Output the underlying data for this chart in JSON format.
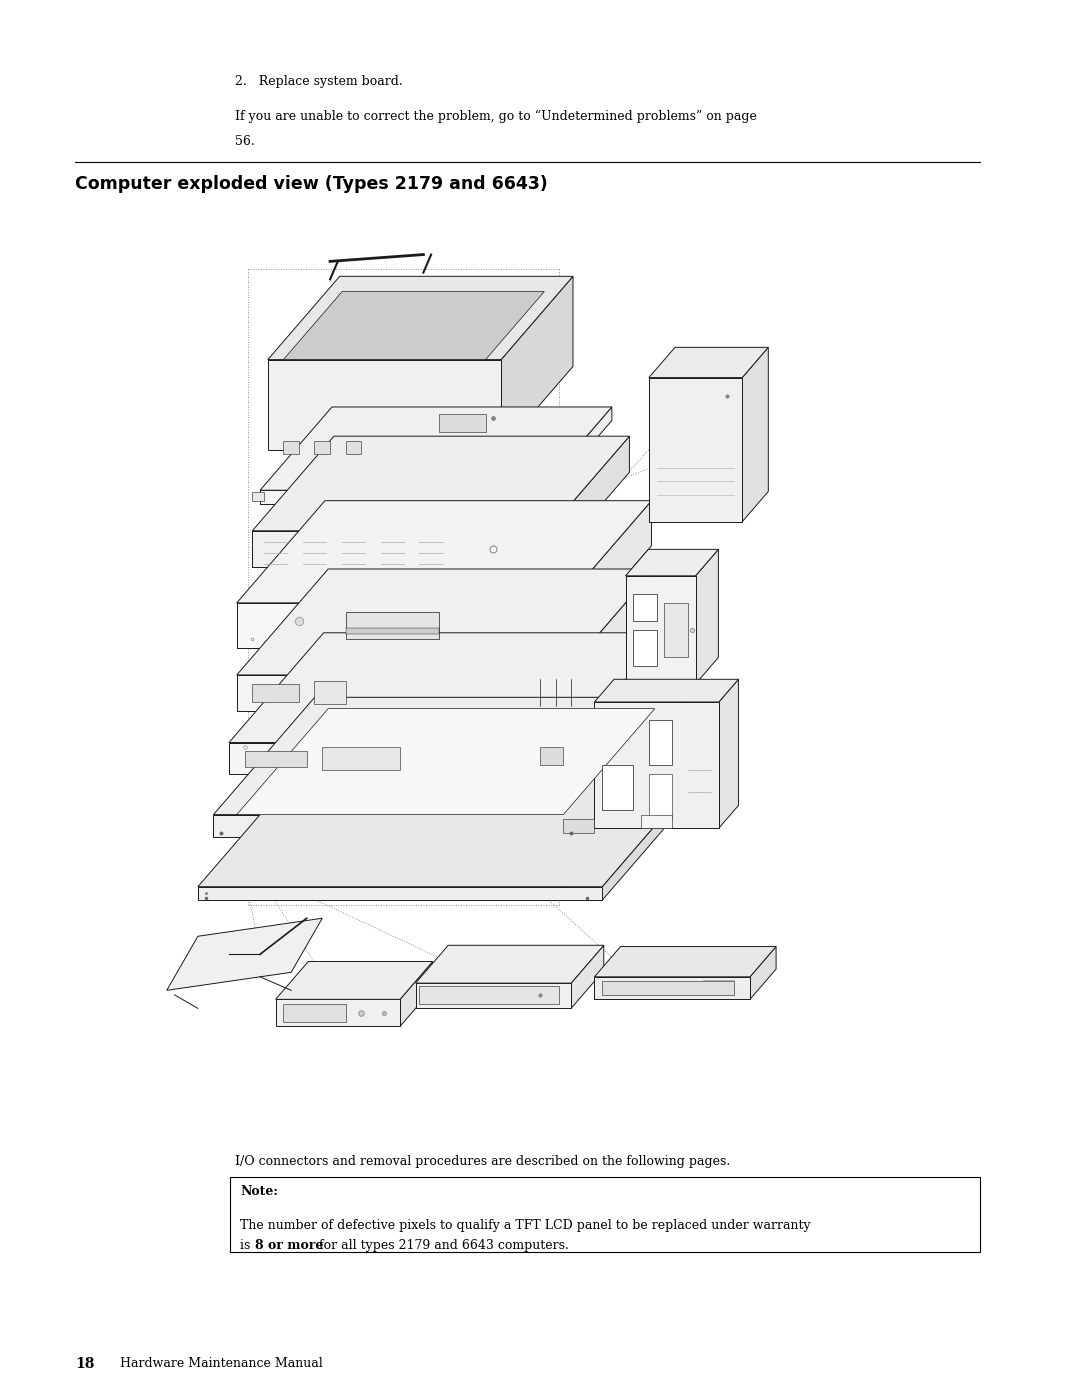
{
  "bg_color": "#ffffff",
  "page_width": 10.8,
  "page_height": 13.97,
  "text_color": "#000000",
  "line1": "2.   Replace system board.",
  "line2": "If you are unable to correct the problem, go to “Undetermined problems” on page",
  "line3": "56.",
  "section_title": "Computer exploded view (Types 2179 and 6643)",
  "caption": "I/O connectors and removal procedures are described on the following pages.",
  "note_label": "Note:",
  "note_text1": "The number of defective pixels to qualify a TFT LCD panel to be replaced under warranty",
  "note_text2": "is ",
  "note_bold": "8 or more",
  "note_text3": " for all types 2179 and 6643 computers.",
  "footer_num": "18",
  "footer_text": "Hardware Maintenance Manual"
}
